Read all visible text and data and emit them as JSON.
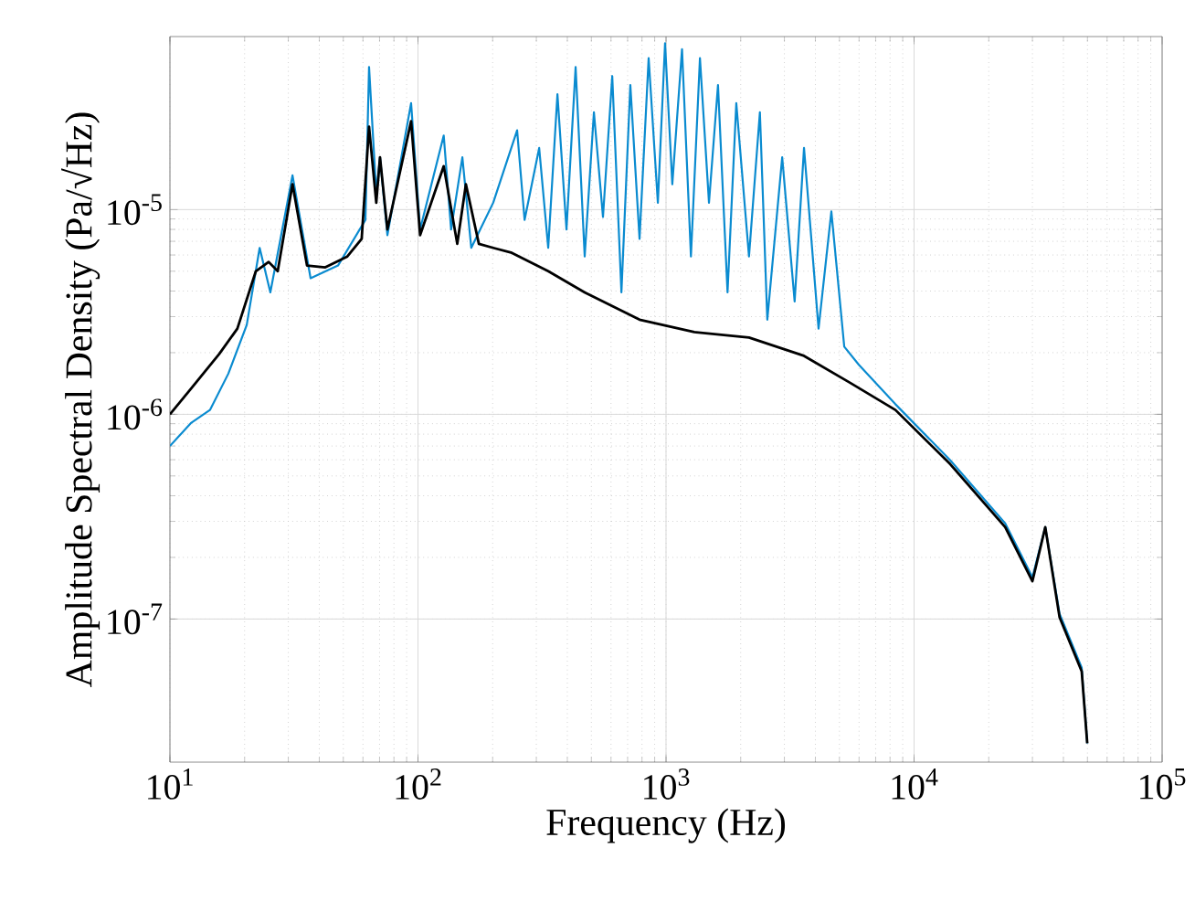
{
  "chart_data": {
    "type": "line",
    "xlabel": "Frequency (Hz)",
    "ylabel": "Amplitude Spectral Density (Pa/√Hz)",
    "log": "xy",
    "grid": true,
    "marker": "none",
    "line_style": "solid",
    "xlim": [
      10,
      100000
    ],
    "ylim": [
      2e-08,
      7e-05
    ],
    "xticks": [
      {
        "value": 10,
        "label": "10$^{1}$"
      },
      {
        "value": 100,
        "label": "10$^{2}$"
      },
      {
        "value": 1000,
        "label": "10$^{3}$"
      },
      {
        "value": 10000,
        "label": "10$^{4}$"
      },
      {
        "value": 100000,
        "label": "10$^{5}$"
      }
    ],
    "yticks": [
      {
        "value": 1e-07,
        "label": "10$^{-7}$"
      },
      {
        "value": 1e-06,
        "label": "10$^{-6}$"
      },
      {
        "value": 1e-05,
        "label": "10$^{-5}$"
      }
    ],
    "series": [
      {
        "color": "#0a8bd0",
        "x": [
          10,
          12.2,
          14.5,
          17.2,
          20.4,
          23.0,
          25.4,
          31.2,
          36.9,
          47.6,
          61.4,
          63.5,
          67.9,
          70.3,
          75.3,
          93.8,
          102,
          127,
          136,
          151,
          164,
          201,
          251,
          269,
          308,
          335,
          365,
          397,
          432,
          470,
          512,
          557,
          607,
          661,
          718,
          782,
          851,
          927,
          991,
          1060,
          1160,
          1260,
          1370,
          1490,
          1620,
          1770,
          1920,
          2160,
          2390,
          2560,
          2940,
          3300,
          3600,
          4120,
          4640,
          5230,
          5980,
          8410,
          14000,
          23300,
          30000,
          33800,
          38600,
          47400,
          49900
        ],
        "values": [
          7e-07,
          9.1e-07,
          1.05e-06,
          1.58e-06,
          2.73e-06,
          6.5e-06,
          3.94e-06,
          1.47e-05,
          4.62e-06,
          5.33e-06,
          8.9e-06,
          4.97e-05,
          1.2e-05,
          1.8e-05,
          7.5e-06,
          3.31e-05,
          8e-06,
          2.3e-05,
          8e-06,
          1.8e-05,
          6.5e-06,
          1.08e-05,
          2.44e-05,
          8.9e-06,
          2e-05,
          6.5e-06,
          3.66e-05,
          8e-06,
          4.97e-05,
          5.9e-06,
          2.99e-05,
          9.2e-06,
          4.49e-05,
          3.94e-06,
          4.06e-05,
          7.2e-06,
          5.5e-05,
          1.08e-05,
          6.5e-05,
          1.33e-05,
          6.08e-05,
          5.9e-06,
          5.5e-05,
          1.08e-05,
          4.06e-05,
          3.94e-06,
          3.31e-05,
          5.9e-06,
          2.99e-05,
          2.9e-06,
          1.8e-05,
          3.56e-06,
          2e-05,
          2.62e-06,
          9.8e-06,
          2.14e-06,
          1.75e-06,
          1.12e-06,
          5.96e-07,
          2.93e-07,
          1.6e-07,
          2.81e-07,
          1.06e-07,
          5.78e-08,
          2.47e-08
        ]
      },
      {
        "color": "#000000",
        "x": [
          10,
          12.2,
          15.8,
          18.7,
          22.2,
          25.0,
          27.2,
          31.2,
          35.7,
          42.3,
          51.9,
          59.3,
          63.5,
          67.9,
          70.3,
          75.3,
          93.8,
          102,
          127,
          144,
          156,
          176,
          201,
          239,
          335,
          470,
          782,
          1300,
          2160,
          3600,
          5500,
          8410,
          14000,
          23300,
          30000,
          33800,
          38600,
          47400,
          49900
        ],
        "values": [
          1e-06,
          1.34e-06,
          1.97e-06,
          2.62e-06,
          5e-06,
          5.55e-06,
          5e-06,
          1.33e-05,
          5.33e-06,
          5.22e-06,
          5.9e-06,
          7.2e-06,
          2.54e-05,
          1.08e-05,
          1.8e-05,
          8e-06,
          2.7e-05,
          7.5e-06,
          1.63e-05,
          6.8e-06,
          1.33e-05,
          6.8e-06,
          6.5e-06,
          6.15e-06,
          5e-06,
          3.94e-06,
          2.9e-06,
          2.52e-06,
          2.37e-06,
          1.93e-06,
          1.43e-06,
          1.05e-06,
          5.7e-07,
          2.81e-07,
          1.53e-07,
          2.81e-07,
          1.02e-07,
          5.55e-08,
          2.47e-08
        ]
      }
    ]
  }
}
